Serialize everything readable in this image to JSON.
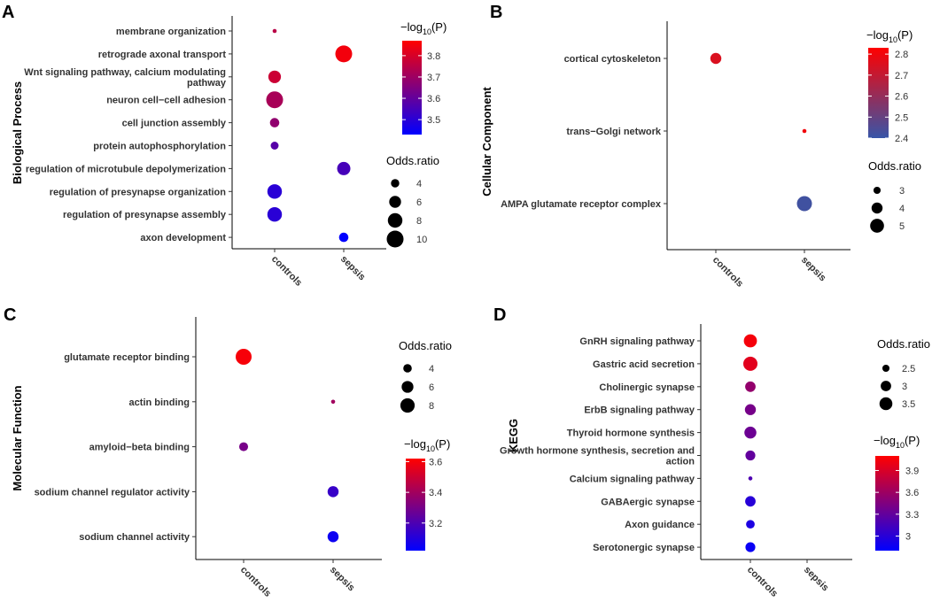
{
  "figure": {
    "panels": [
      "A",
      "B",
      "C",
      "D"
    ],
    "x_categories": [
      "controls",
      "sepsis"
    ]
  },
  "chart_data": [
    {
      "panel": "A",
      "type": "scatter",
      "ylabel": "Biological Process",
      "categories_x": [
        "controls",
        "sepsis"
      ],
      "terms": [
        "membrane organization",
        "retrograde axonal transport",
        "Wnt signaling pathway, calcium modulating pathway",
        "neuron cell−cell adhesion",
        "cell junction assembly",
        "protein autophosphorylation",
        "regulation of microtubule depolymerization",
        "regulation of presynapse organization",
        "regulation of presynapse assembly",
        "axon development"
      ],
      "term_lines": [
        [
          "membrane organization"
        ],
        [
          "retrograde axonal transport"
        ],
        [
          "Wnt signaling pathway, calcium modulating",
          "pathway"
        ],
        [
          "neuron cell−cell adhesion"
        ],
        [
          "cell junction assembly"
        ],
        [
          "protein autophosphorylation"
        ],
        [
          "regulation of microtubule depolymerization"
        ],
        [
          "regulation of presynapse organization"
        ],
        [
          "regulation of presynapse assembly"
        ],
        [
          "axon development"
        ]
      ],
      "points": [
        {
          "term": "membrane organization",
          "group": "controls",
          "odds_ratio": 2.5,
          "neglog10p": 3.75
        },
        {
          "term": "retrograde axonal transport",
          "group": "sepsis",
          "odds_ratio": 10,
          "neglog10p": 3.85
        },
        {
          "term": "Wnt signaling pathway, calcium modulating pathway",
          "group": "controls",
          "odds_ratio": 6.5,
          "neglog10p": 3.78
        },
        {
          "term": "neuron cell−cell adhesion",
          "group": "controls",
          "odds_ratio": 10,
          "neglog10p": 3.72
        },
        {
          "term": "cell junction assembly",
          "group": "controls",
          "odds_ratio": 4.5,
          "neglog10p": 3.68
        },
        {
          "term": "protein autophosphorylation",
          "group": "controls",
          "odds_ratio": 3.8,
          "neglog10p": 3.58
        },
        {
          "term": "regulation of microtubule depolymerization",
          "group": "sepsis",
          "odds_ratio": 7,
          "neglog10p": 3.55
        },
        {
          "term": "regulation of presynapse organization",
          "group": "controls",
          "odds_ratio": 8,
          "neglog10p": 3.5
        },
        {
          "term": "regulation of presynapse assembly",
          "group": "controls",
          "odds_ratio": 8,
          "neglog10p": 3.5
        },
        {
          "term": "axon development",
          "group": "sepsis",
          "odds_ratio": 4.5,
          "neglog10p": 3.43
        }
      ],
      "size_legend": {
        "title": "Odds.ratio",
        "values": [
          4,
          6,
          8,
          10
        ],
        "range": [
          2.5,
          10
        ]
      },
      "color_legend": {
        "title_prefix": "−log",
        "title_sub": "10",
        "title_suffix": "(P)",
        "ticks": [
          3.5,
          3.6,
          3.7,
          3.8
        ],
        "range": [
          3.43,
          3.87
        ],
        "low": "#0000ff",
        "high": "#ff0000"
      }
    },
    {
      "panel": "B",
      "type": "scatter",
      "ylabel": "Cellular Component",
      "categories_x": [
        "controls",
        "sepsis"
      ],
      "terms": [
        "cortical cytoskeleton",
        "trans−Golgi network",
        "AMPA glutamate receptor complex"
      ],
      "term_lines": [
        [
          "cortical cytoskeleton"
        ],
        [
          "trans−Golgi network"
        ],
        [
          "AMPA glutamate receptor complex"
        ]
      ],
      "points": [
        {
          "term": "cortical cytoskeleton",
          "group": "controls",
          "odds_ratio": 4.0,
          "neglog10p": 2.75
        },
        {
          "term": "trans−Golgi network",
          "group": "sepsis",
          "odds_ratio": 2.5,
          "neglog10p": 2.8
        },
        {
          "term": "AMPA glutamate receptor complex",
          "group": "sepsis",
          "odds_ratio": 5.5,
          "neglog10p": 2.42
        }
      ],
      "size_legend": {
        "title": "Odds.ratio",
        "values": [
          3,
          4,
          5
        ],
        "range": [
          2.5,
          5.5
        ]
      },
      "color_legend": {
        "title_prefix": "−log",
        "title_sub": "10",
        "title_suffix": "(P)",
        "ticks": [
          2.4,
          2.5,
          2.6,
          2.7,
          2.8
        ],
        "range": [
          2.4,
          2.83
        ],
        "low": "#3755a8",
        "high": "#ff0000"
      }
    },
    {
      "panel": "C",
      "type": "scatter",
      "ylabel": "Molecular Function",
      "categories_x": [
        "controls",
        "sepsis"
      ],
      "terms": [
        "glutamate receptor binding",
        "actin binding",
        "amyloid−beta binding",
        "sodium channel regulator activity",
        "sodium channel activity"
      ],
      "term_lines": [
        [
          "glutamate receptor binding"
        ],
        [
          "actin binding"
        ],
        [
          "amyloid−beta binding"
        ],
        [
          "sodium channel regulator activity"
        ],
        [
          "sodium channel activity"
        ]
      ],
      "points": [
        {
          "term": "glutamate receptor binding",
          "group": "controls",
          "odds_ratio": 9.5,
          "neglog10p": 3.6
        },
        {
          "term": "actin binding",
          "group": "sepsis",
          "odds_ratio": 2.3,
          "neglog10p": 3.4
        },
        {
          "term": "amyloid−beta binding",
          "group": "controls",
          "odds_ratio": 4.2,
          "neglog10p": 3.3
        },
        {
          "term": "sodium channel regulator activity",
          "group": "sepsis",
          "odds_ratio": 5.5,
          "neglog10p": 3.15
        },
        {
          "term": "sodium channel activity",
          "group": "sepsis",
          "odds_ratio": 5.5,
          "neglog10p": 3.05
        }
      ],
      "size_legend": {
        "title": "Odds.ratio",
        "values": [
          4,
          6,
          8
        ],
        "range": [
          2.3,
          9.5
        ]
      },
      "color_legend": {
        "title_prefix": "−log",
        "title_sub": "10",
        "title_suffix": "(P)",
        "ticks": [
          3.2,
          3.4,
          3.6
        ],
        "range": [
          3.02,
          3.62
        ],
        "low": "#0000ff",
        "high": "#ff0000"
      }
    },
    {
      "panel": "D",
      "type": "scatter",
      "ylabel": "KEGG",
      "categories_x": [
        "controls",
        "sepsis"
      ],
      "terms": [
        "GnRH signaling pathway",
        "Gastric acid secretion",
        "Cholinergic synapse",
        "ErbB signaling pathway",
        "Thyroid hormone synthesis",
        "Growth hormone synthesis, secretion and action",
        "Calcium signaling pathway",
        "GABAergic synapse",
        "Axon guidance",
        "Serotonergic synapse"
      ],
      "term_lines": [
        [
          "GnRH signaling pathway"
        ],
        [
          "Gastric acid secretion"
        ],
        [
          "Cholinergic synapse"
        ],
        [
          "ErbB signaling pathway"
        ],
        [
          "Thyroid hormone synthesis"
        ],
        [
          "Growth hormone synthesis, secretion and",
          "action"
        ],
        [
          "Calcium signaling pathway"
        ],
        [
          "GABAergic synapse"
        ],
        [
          "Axon guidance"
        ],
        [
          "Serotonergic synapse"
        ]
      ],
      "points": [
        {
          "term": "GnRH signaling pathway",
          "group": "controls",
          "odds_ratio": 3.55,
          "neglog10p": 4.05
        },
        {
          "term": "Gastric acid secretion",
          "group": "controls",
          "odds_ratio": 3.8,
          "neglog10p": 3.95
        },
        {
          "term": "Cholinergic synapse",
          "group": "controls",
          "odds_ratio": 3.0,
          "neglog10p": 3.55
        },
        {
          "term": "ErbB signaling pathway",
          "group": "controls",
          "odds_ratio": 3.1,
          "neglog10p": 3.4
        },
        {
          "term": "Thyroid hormone synthesis",
          "group": "controls",
          "odds_ratio": 3.3,
          "neglog10p": 3.35
        },
        {
          "term": "Growth hormone synthesis, secretion and action",
          "group": "controls",
          "odds_ratio": 2.9,
          "neglog10p": 3.3
        },
        {
          "term": "Calcium signaling pathway",
          "group": "controls",
          "odds_ratio": 2.2,
          "neglog10p": 3.2
        },
        {
          "term": "GABAergic synapse",
          "group": "controls",
          "odds_ratio": 3.0,
          "neglog10p": 3.0
        },
        {
          "term": "Axon guidance",
          "group": "controls",
          "odds_ratio": 2.7,
          "neglog10p": 2.95
        },
        {
          "term": "Serotonergic synapse",
          "group": "controls",
          "odds_ratio": 2.9,
          "neglog10p": 2.85
        }
      ],
      "size_legend": {
        "title": "Odds.ratio",
        "values": [
          2.5,
          3.0,
          3.5
        ],
        "range": [
          2.2,
          3.8
        ]
      },
      "color_legend": {
        "title_prefix": "−log",
        "title_sub": "10",
        "title_suffix": "(P)",
        "ticks": [
          3.0,
          3.3,
          3.6,
          3.9
        ],
        "range": [
          2.8,
          4.1
        ],
        "low": "#0000ff",
        "high": "#ff0000"
      }
    }
  ]
}
